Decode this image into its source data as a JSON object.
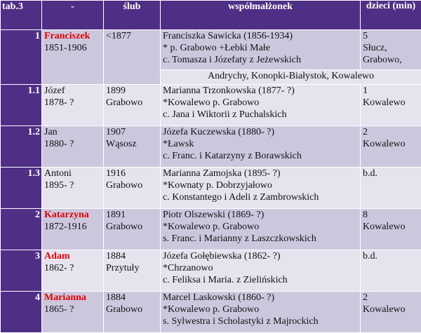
{
  "header": {
    "nr": "tab.3",
    "name": "-",
    "wedding": "ślub",
    "spouse": "współmałżonek",
    "children": "dzieci (min)"
  },
  "rows": [
    {
      "nr": "1",
      "name": "Franciszek",
      "name_highlight": true,
      "dates": "1851-1906",
      "wedding_year": "<1877",
      "wedding_place": "",
      "spouse": [
        "Franciszka Sawicka (1856-1934)",
        "* p. Grabowo +Łebki Małe",
        "c. Tomasza i Józefaty z Jeżewskich"
      ],
      "children_count": "5",
      "children_places": [
        "Słucz,",
        "Grabowo,"
      ],
      "continuation": "Andrychy, Konopki-Białystok, Kowalewo"
    },
    {
      "nr": "1.1",
      "name": "Józef",
      "name_highlight": false,
      "dates": "1878- ?",
      "wedding_year": "1899",
      "wedding_place": "Grabowo",
      "spouse": [
        "Marianna Trzonkowska (1877- ?)",
        "*Kowalewo p. Grabowo",
        "c. Jana i Wiktorii z Puchalskich"
      ],
      "children_count": "1",
      "children_places": [
        "Kowalewo"
      ]
    },
    {
      "nr": "1.2",
      "name": "Jan",
      "name_highlight": false,
      "dates": "1880- ?",
      "wedding_year": "1907",
      "wedding_place": "Wąsosz",
      "spouse": [
        "Józefa Kuczewska (1880- ?)",
        "*Ławsk",
        "c. Franc. i Katarzyny z Borawskich"
      ],
      "children_count": "2",
      "children_places": [
        "Kowalewo"
      ]
    },
    {
      "nr": "1.3",
      "name": "Antoni",
      "name_highlight": false,
      "dates": "1895- ?",
      "wedding_year": "1916",
      "wedding_place": "Grabowo",
      "spouse": [
        "Marianna Zamojska (1895- ?)",
        "*Kownaty p. Dobrzyjałowo",
        "c. Konstantego i Adeli z Zambrowskich"
      ],
      "children_count": "b.d.",
      "children_places": []
    },
    {
      "nr": "2",
      "name": "Katarzyna",
      "name_highlight": true,
      "dates": "1872-1916",
      "wedding_year": "1891",
      "wedding_place": "Grabowo",
      "spouse": [
        "Piotr Olszewski (1869- ?)",
        "*Kowalewo p. Grabowo",
        "s. Franc. i Marianny z Laszczkowskich"
      ],
      "children_count": "8",
      "children_places": [
        "Kowalewo"
      ]
    },
    {
      "nr": "3",
      "name": "Adam",
      "name_highlight": true,
      "dates": "1862- ?",
      "wedding_year": "1884",
      "wedding_place": "Przytuły",
      "spouse": [
        "Józefa Gołębiewska (1862- ?)",
        "*Chrzanowo",
        "c. Feliksa i Maria. z Zielińskich"
      ],
      "children_count": "b.d.",
      "children_places": []
    },
    {
      "nr": "4",
      "name": "Marianna",
      "name_highlight": true,
      "dates": "1865- ?",
      "wedding_year": "1884",
      "wedding_place": "Grabowo",
      "spouse": [
        "Marcel Laskowski (1860- ?)",
        "*Kowalewo p. Grabowo",
        "s. Sylwestra i Scholastyki z Majrockich"
      ],
      "children_count": "2",
      "children_places": [
        "Kowalewo"
      ]
    }
  ],
  "colors": {
    "header_bg": "#4f2f86",
    "row_dark": "#cdc7de",
    "row_light": "#e6e2ee",
    "highlight_text": "#e00000"
  }
}
